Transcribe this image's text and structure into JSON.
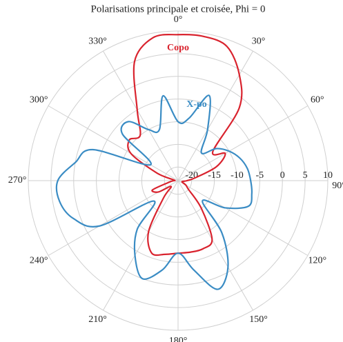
{
  "chart_data": {
    "type": "polar",
    "title": "Polarisations principale et croisée, Phi = 0",
    "theta": [
      0,
      10,
      20,
      30,
      40,
      50,
      60,
      70,
      80,
      90,
      100,
      110,
      120,
      130,
      140,
      150,
      160,
      170,
      180,
      190,
      200,
      210,
      220,
      230,
      240,
      250,
      260,
      270,
      280,
      290,
      300,
      310,
      320,
      330,
      340,
      350
    ],
    "series": [
      {
        "name": "Copo",
        "color": "#d9232e",
        "values": [
          9.2,
          9.3,
          8.5,
          4,
          -2,
          -13,
          -11,
          -14,
          -19,
          -21,
          -22,
          -22,
          -21,
          -20,
          -15,
          -8,
          -7,
          -7,
          -7,
          -6.5,
          -6,
          -10,
          -18,
          -21,
          -18,
          -17,
          -21,
          -22,
          -22,
          -18,
          -11,
          -9,
          -10,
          -5,
          5,
          9
        ]
      },
      {
        "name": "X-po",
        "color": "#3a8cc4",
        "values": [
          -10,
          -9,
          -3,
          -10,
          -15,
          -12,
          -10,
          -8.5,
          -7.5,
          -7,
          -6.5,
          -6.5,
          -11,
          -16,
          -8,
          -1,
          2.5,
          -3,
          -7,
          -3,
          0,
          -4,
          -9,
          -16,
          -3,
          1.5,
          3.5,
          3.5,
          0,
          -3,
          -16,
          -7,
          -6,
          -10,
          -11,
          -4
        ]
      }
    ],
    "rlim": [
      -23,
      10
    ],
    "rticks": [
      -20,
      -15,
      -10,
      -5,
      0,
      5,
      10
    ],
    "thetaticks": [
      {
        "value": 0,
        "label": "0°"
      },
      {
        "value": 30,
        "label": "30°"
      },
      {
        "value": 60,
        "label": "60°"
      },
      {
        "value": 90,
        "label": "90°"
      },
      {
        "value": 120,
        "label": "120°"
      },
      {
        "value": 150,
        "label": "150°"
      },
      {
        "value": 180,
        "label": "180°"
      },
      {
        "value": 210,
        "label": "210°"
      },
      {
        "value": 240,
        "label": "240°"
      },
      {
        "value": 270,
        "label": "270°"
      },
      {
        "value": 300,
        "label": "300°"
      },
      {
        "value": 330,
        "label": "330°"
      }
    ],
    "grid": true
  }
}
